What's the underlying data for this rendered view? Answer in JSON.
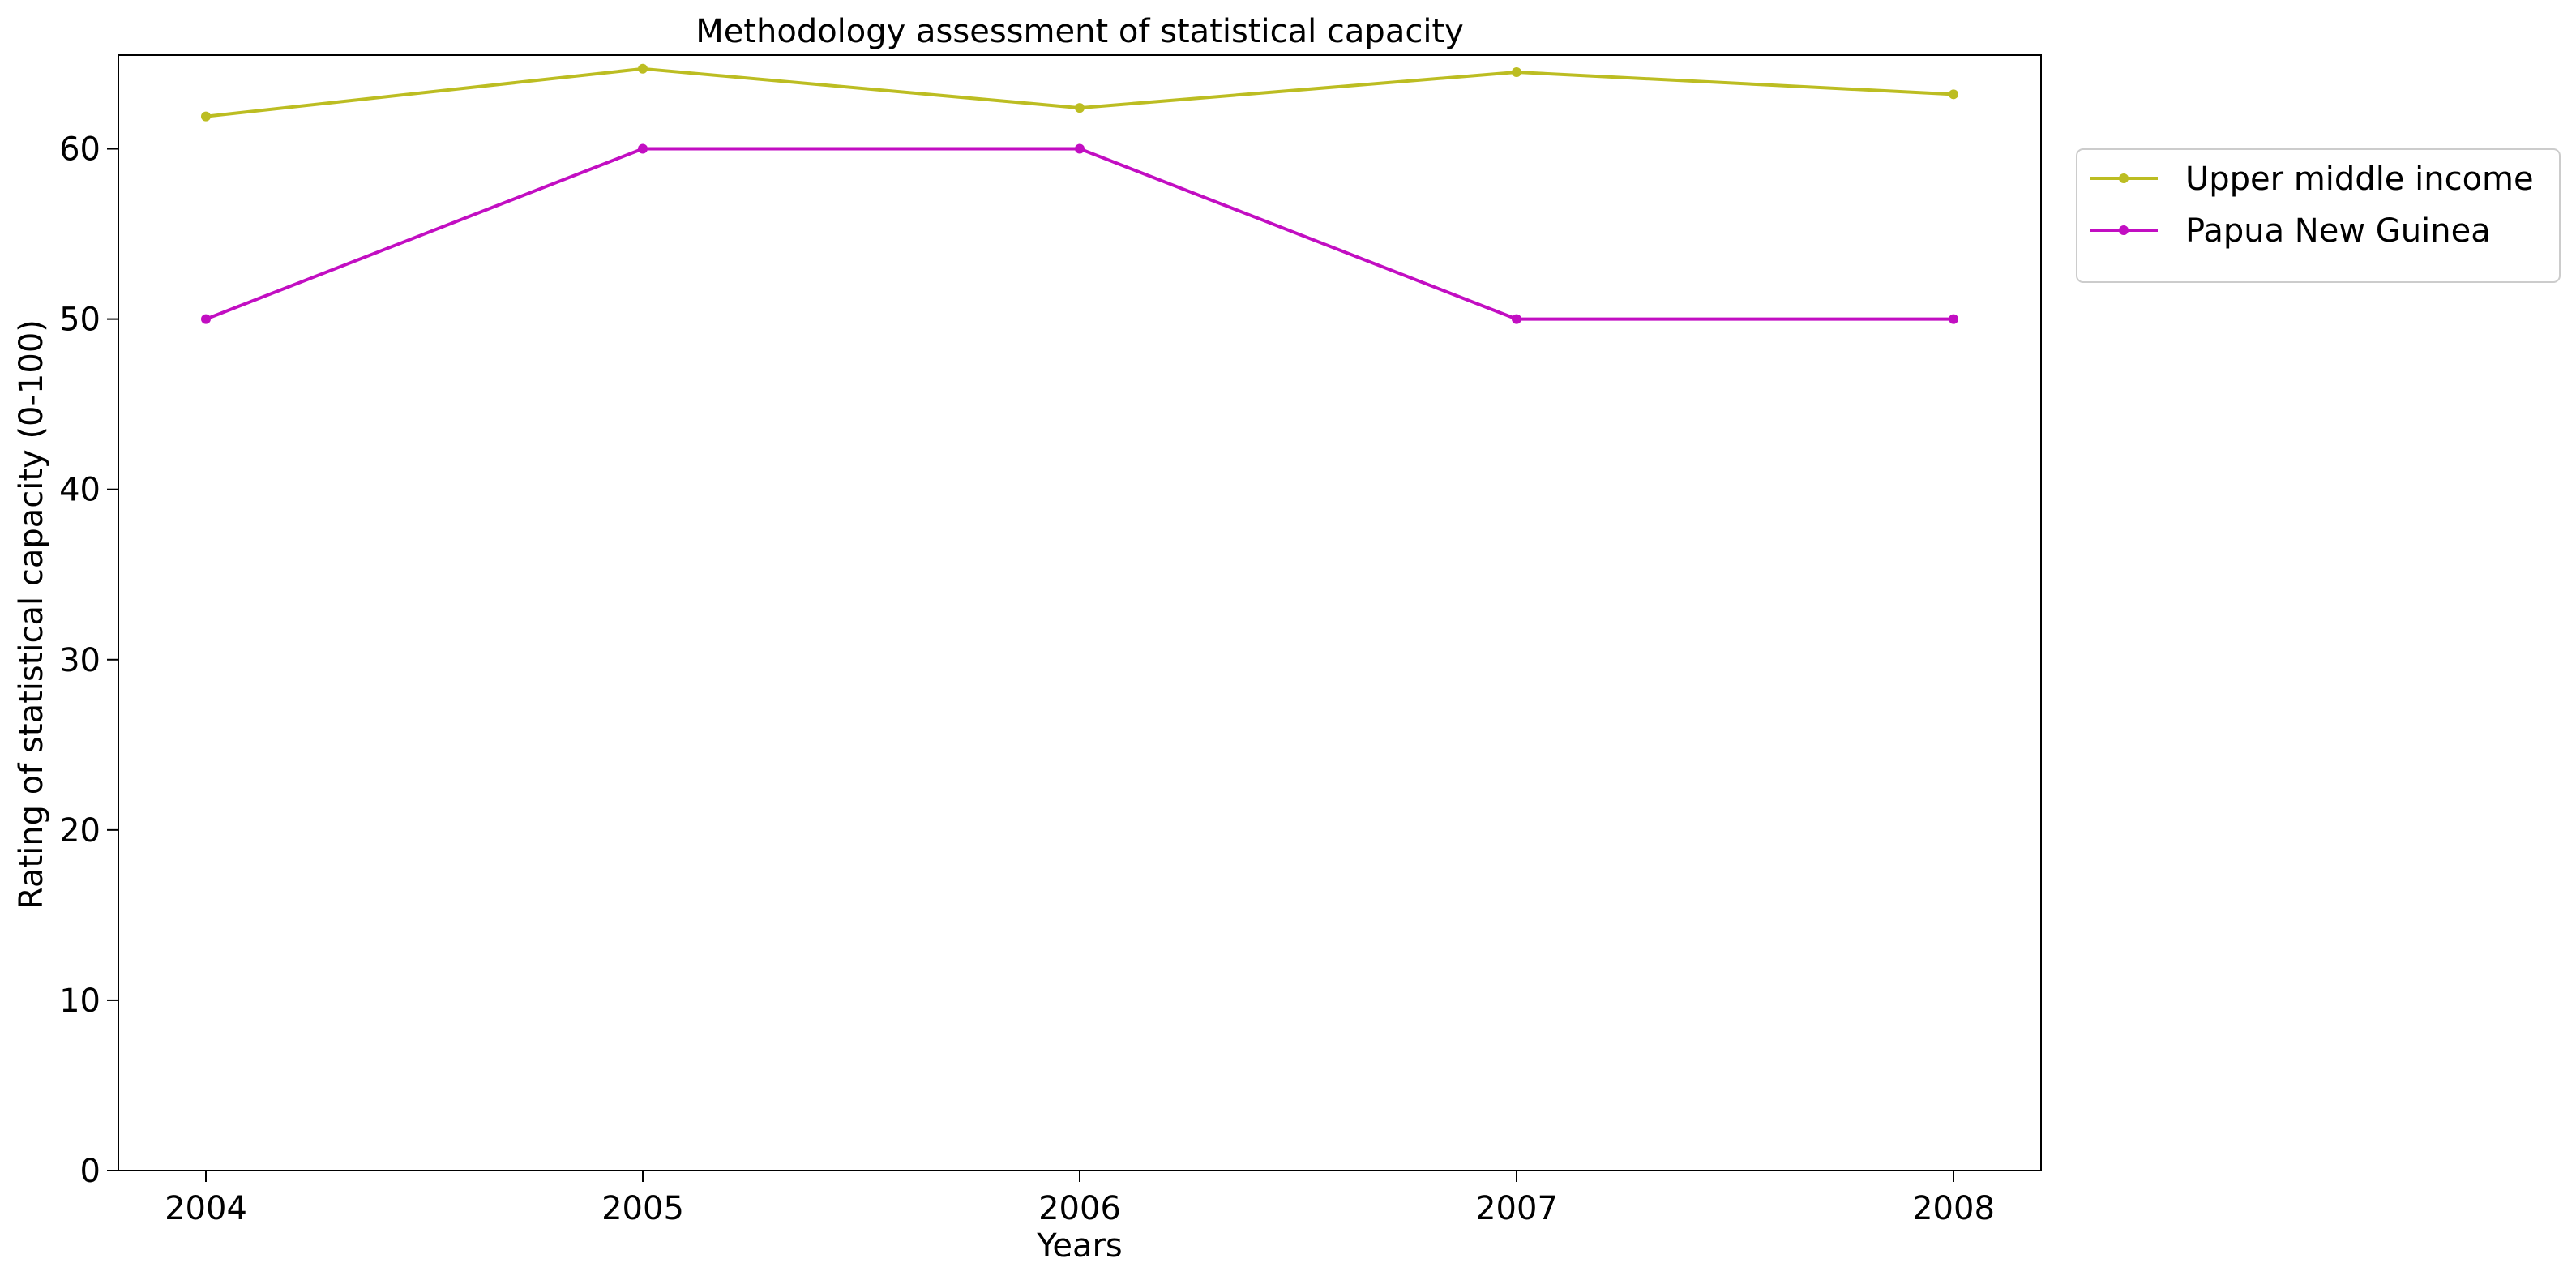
{
  "chart_data": {
    "type": "line",
    "title": "Methodology assessment of statistical capacity",
    "xlabel": "Years",
    "ylabel": "Rating of statistical capacity (0-100)",
    "categories": [
      "2004",
      "2005",
      "2006",
      "2007",
      "2008"
    ],
    "ylim": [
      0,
      65.5
    ],
    "yticks": [
      0,
      10,
      20,
      30,
      40,
      50,
      60
    ],
    "grid": false,
    "legend_position": "outside-right-top",
    "series": [
      {
        "name": "Upper middle income",
        "color": "#bcbd22",
        "values": [
          61.9,
          64.7,
          62.4,
          64.5,
          63.2
        ]
      },
      {
        "name": "Papua New Guinea",
        "color": "#c20ec2",
        "values": [
          50,
          60,
          60,
          50,
          50
        ]
      }
    ]
  }
}
